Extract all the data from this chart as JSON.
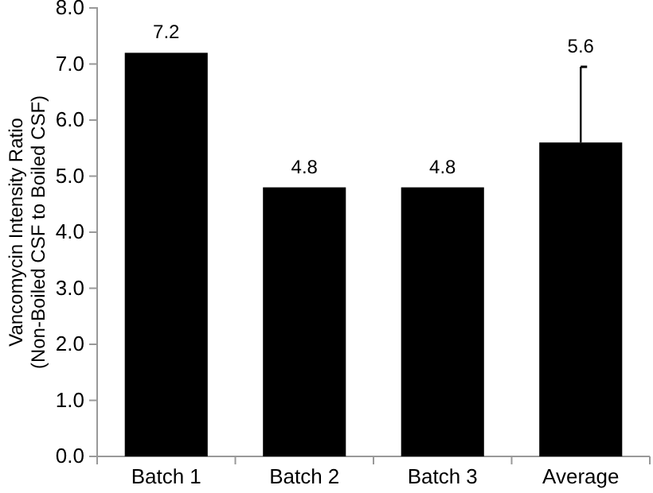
{
  "chart_data": {
    "type": "bar",
    "ylabel": "Vancomycin Intensity Ratio\n(Non-Boiled CSF to Boiled CSF)",
    "categories": [
      "Batch 1",
      "Batch 2",
      "Batch 3",
      "Average"
    ],
    "values": [
      7.2,
      4.8,
      4.8,
      5.6
    ],
    "color": "#000000",
    "errors": [
      null,
      null,
      null,
      [
        5.6,
        6.95
      ]
    ],
    "value_labels": [
      "7.2",
      "4.8",
      "4.8",
      null
    ],
    "annotations": [
      {
        "text": "5.6",
        "x": "Average",
        "y": 6.95
      }
    ],
    "grid": false,
    "ylim": [
      0,
      8
    ],
    "yticks": [
      {
        "value": 0,
        "label": "0.0"
      },
      {
        "value": 1,
        "label": "1.0"
      },
      {
        "value": 2,
        "label": "2.0"
      },
      {
        "value": 3,
        "label": "3.0"
      },
      {
        "value": 4,
        "label": "4.0"
      },
      {
        "value": 5,
        "label": "5.0"
      },
      {
        "value": 6,
        "label": "6.0"
      },
      {
        "value": 7,
        "label": "7.0"
      },
      {
        "value": 8,
        "label": "8.0"
      }
    ]
  }
}
